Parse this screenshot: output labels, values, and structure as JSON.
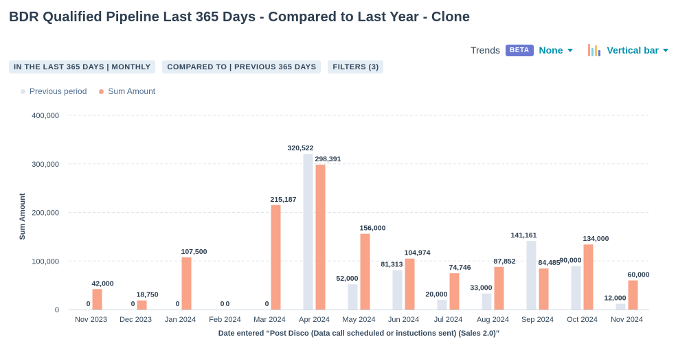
{
  "header": {
    "title": "BDR Qualified Pipeline Last 365 Days - Compared to Last Year - Clone"
  },
  "toolbar": {
    "trends_label": "Trends",
    "beta_label": "BETA",
    "trend_value": "None",
    "chart_type_label": "Vertical bar",
    "chart_icon": "vertical-bar-chart-icon"
  },
  "chips": [
    {
      "label": "IN THE LAST 365 DAYS | MONTHLY"
    },
    {
      "label": "COMPARED TO | PREVIOUS 365 DAYS"
    },
    {
      "label": "FILTERS (3)"
    }
  ],
  "colors": {
    "previous": "#dfe5ee",
    "current": "#f9a388",
    "accent": "#0091ae",
    "beta": "#6a78d1"
  },
  "chart_data": {
    "type": "bar",
    "categories": [
      "Nov 2023",
      "Dec 2023",
      "Jan 2024",
      "Feb 2024",
      "Mar 2024",
      "Apr 2024",
      "May 2024",
      "Jun 2024",
      "Jul 2024",
      "Aug 2024",
      "Sep 2024",
      "Oct 2024",
      "Nov 2024"
    ],
    "series": [
      {
        "name": "Previous period",
        "values": [
          0,
          0,
          0,
          0,
          0,
          320522,
          52000,
          81313,
          20000,
          33000,
          141161,
          90000,
          12000
        ],
        "labels": [
          "0",
          "0",
          "0",
          "0",
          "0",
          "320,522",
          "52,000",
          "81,313",
          "20,000",
          "33,000",
          "141,161",
          "90,000",
          "12,000"
        ]
      },
      {
        "name": "Sum Amount",
        "values": [
          42000,
          18750,
          107500,
          0,
          215187,
          298391,
          156000,
          104974,
          74746,
          87852,
          84485,
          134000,
          60000
        ],
        "labels": [
          "42,000",
          "18,750",
          "107,500",
          "0",
          "215,187",
          "298,391",
          "156,000",
          "104,974",
          "74,746",
          "87,852",
          "84,485",
          "134,000",
          "60,000"
        ]
      }
    ],
    "xlabel": "Date entered “Post Disco (Data call scheduled or instuctions sent) (Sales 2.0)”",
    "ylabel": "Sum Amount",
    "ylim": [
      0,
      400000
    ],
    "yticks": [
      0,
      100000,
      200000,
      300000,
      400000
    ],
    "ytick_labels": [
      "0",
      "100,000",
      "200,000",
      "300,000",
      "400,000"
    ],
    "grid": true,
    "legend_position": "top-left"
  }
}
